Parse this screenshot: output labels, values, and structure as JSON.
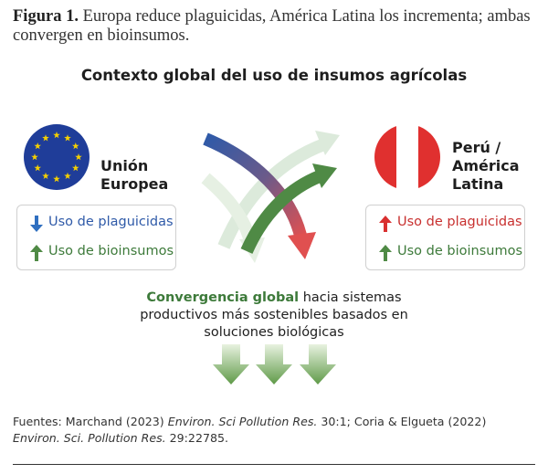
{
  "figure": {
    "label": "Figura 1.",
    "caption": "Europa reduce plaguicidas, América Latina los incrementa; ambas convergen en bioinsumos."
  },
  "heading": "Contexto global del uso de insumos agrícolas",
  "regions": [
    {
      "name": "Unión Europea",
      "items": [
        "Uso de plaguicidas",
        "Uso de bioinsumos"
      ]
    },
    {
      "name": "Perú / América Latina",
      "items": [
        "Uso de plaguicidas",
        "Uso de bioinsumos"
      ]
    }
  ],
  "convergence": {
    "emphasis": "Convergencia global",
    "text": "hacia sistemas productivos más sostenibles basados en soluciones biológicas"
  },
  "sources": {
    "parts": [
      "Fuentes: Marchand (2023) ",
      "Environ. Sci Pollution Res.",
      " 30:1; Coria & Elgueta (2022) ",
      "Environ. Sci. Pollution Res.",
      " 29:22785."
    ]
  }
}
